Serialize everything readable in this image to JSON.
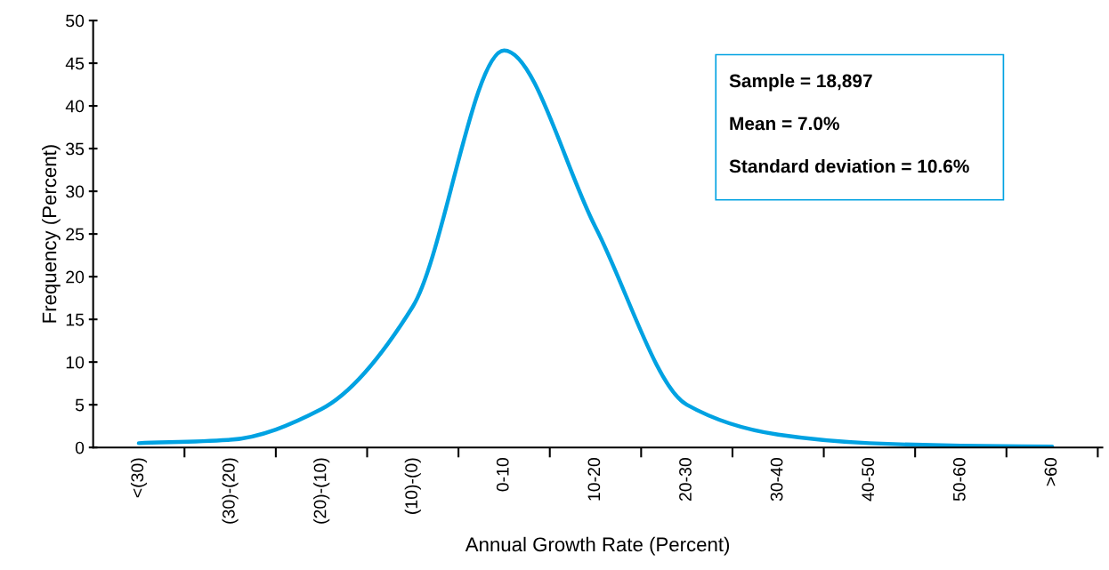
{
  "chart_data": {
    "type": "line",
    "xlabel": "Annual Growth Rate (Percent)",
    "ylabel": "Frequency (Percent)",
    "categories": [
      "<(30)",
      "(30)-(20)",
      "(20)-(10)",
      "(10)-(0)",
      "0-10",
      "10-20",
      "20-30",
      "30-40",
      "40-50",
      "50-60",
      ">60"
    ],
    "series": [
      {
        "color": "#00a2e2",
        "values": [
          0.5,
          0.9,
          4.5,
          16.5,
          46.5,
          25.8,
          5.0,
          1.5,
          0.5,
          0.2,
          0.1
        ]
      }
    ],
    "ylim": [
      0,
      50
    ],
    "yticks": [
      0,
      5,
      10,
      15,
      20,
      25,
      30,
      35,
      40,
      45,
      50
    ],
    "grid": false,
    "legend": false,
    "marker": "none",
    "line_style": "solid",
    "annotations": [
      "Sample = 18,897",
      "Mean = 7.0%",
      "Standard deviation = 10.6%"
    ]
  }
}
